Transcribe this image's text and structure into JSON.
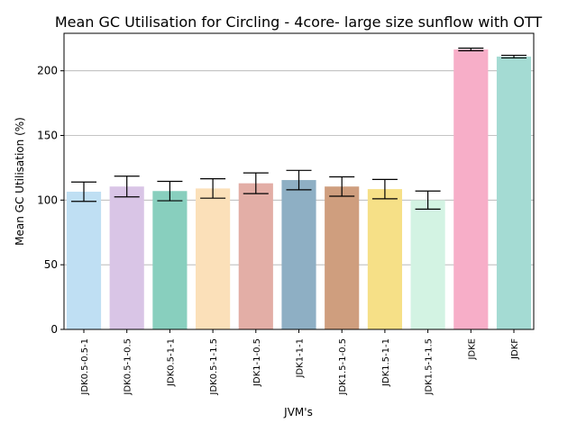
{
  "chart_data": {
    "type": "bar",
    "title": "Mean GC Utilisation for Circling - 4core- large size sunflow with OTT",
    "xlabel": "JVM's",
    "ylabel": "Mean GC Utilisation (%)",
    "ylim": [
      0,
      229
    ],
    "yticks": [
      0,
      50,
      100,
      150,
      200
    ],
    "grid": "y",
    "categories": [
      "JDK0.5-0.5-1",
      "JDK0.5-1-0.5",
      "JDK0.5-1-1",
      "JDK0.5-1-1.5",
      "JDK1-1-0.5",
      "JDK1-1-1",
      "JDK1.5-1-0.5",
      "JDK1.5-1-1",
      "JDK1.5-1-1.5",
      "JDKE",
      "JDKF"
    ],
    "values": [
      106.5,
      110.5,
      107,
      109,
      113,
      115.5,
      110.5,
      108.5,
      100,
      216.5,
      211
    ],
    "errors": [
      7.5,
      8,
      7.5,
      7.5,
      8,
      7.5,
      7.5,
      7.5,
      7,
      1,
      1
    ],
    "colors": [
      "#bfdff3",
      "#d9c5e6",
      "#88cfbe",
      "#fbe0b9",
      "#e3aea6",
      "#8eafc4",
      "#cf9e7e",
      "#f6e087",
      "#d3f3e3",
      "#f7aec8",
      "#a4dbd3"
    ]
  }
}
